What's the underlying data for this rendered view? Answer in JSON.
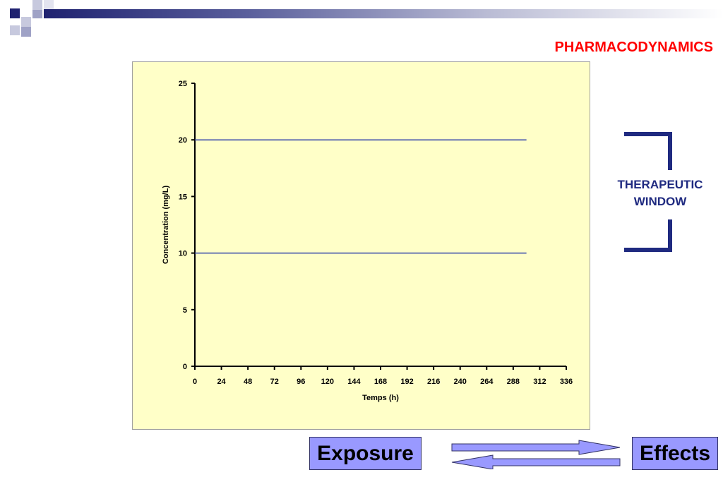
{
  "header": {
    "title": "PHARMACODYNAMICS"
  },
  "colors": {
    "title_red": "#ff0000",
    "navy": "#1f2a80",
    "chart_bg": "#ffffc8",
    "box_fill": "#9999ff",
    "line_blue": "#3344aa"
  },
  "chart_data": {
    "type": "line",
    "xlabel": "Temps (h)",
    "ylabel": "Concentration (mg/L)",
    "xlim": [
      0,
      336
    ],
    "ylim": [
      0,
      25
    ],
    "xticks": [
      0,
      24,
      48,
      72,
      96,
      120,
      144,
      168,
      192,
      216,
      240,
      264,
      288,
      312,
      336
    ],
    "yticks": [
      0,
      5,
      10,
      15,
      20,
      25
    ],
    "grid": false,
    "series": [
      {
        "x": [
          0,
          300
        ],
        "y": [
          20,
          20
        ]
      },
      {
        "x": [
          0,
          300
        ],
        "y": [
          10,
          10
        ]
      }
    ]
  },
  "therapeutic_window": {
    "line1": "THERAPEUTIC",
    "line2": "WINDOW"
  },
  "exposure_label": "Exposure",
  "effects_label": "Effects"
}
